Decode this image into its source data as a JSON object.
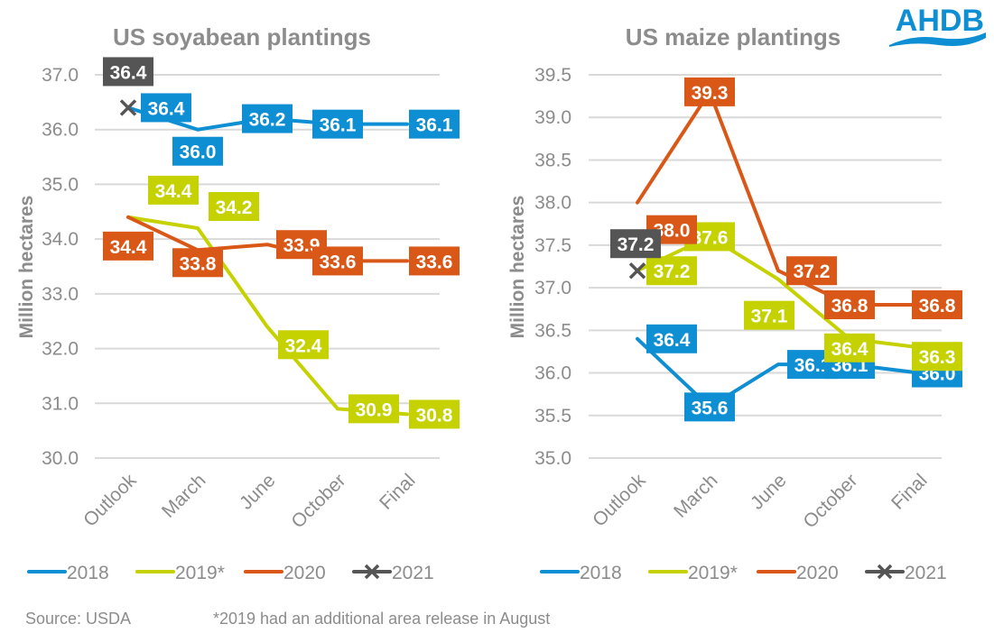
{
  "brand": {
    "name": "AHDB",
    "color": "#0f8fd3"
  },
  "footer": {
    "source": "Source: USDA",
    "note": "*2019 had an additional area release in August"
  },
  "series_styles": {
    "2018": {
      "color": "#0f8fd3",
      "marker": "line"
    },
    "2019*": {
      "color": "#c5d200",
      "marker": "line"
    },
    "2020": {
      "color": "#d95818",
      "marker": "line"
    },
    "2021": {
      "color": "#555555",
      "marker": "x"
    }
  },
  "chart_data": [
    {
      "type": "line",
      "title": "US soyabean plantings",
      "xlabel": "",
      "ylabel": "Million hectares",
      "categories": [
        "Outlook",
        "March",
        "June",
        "October",
        "Final"
      ],
      "ylim": [
        30.0,
        37.0
      ],
      "yticks": [
        "30.0",
        "31.0",
        "32.0",
        "33.0",
        "34.0",
        "35.0",
        "36.0",
        "37.0"
      ],
      "grid": true,
      "legend": "bottom",
      "series": [
        {
          "name": "2018",
          "values": [
            36.4,
            36.0,
            36.2,
            36.1,
            36.1
          ],
          "labels": [
            "36.4",
            "36.0",
            "36.2",
            "36.1",
            "36.1"
          ]
        },
        {
          "name": "2019*",
          "values": [
            34.4,
            34.2,
            32.4,
            30.9,
            30.8
          ],
          "labels": [
            "34.4",
            "34.2",
            "32.4",
            "30.9",
            "30.8"
          ]
        },
        {
          "name": "2020",
          "values": [
            34.4,
            33.8,
            33.9,
            33.6,
            33.6
          ],
          "labels": [
            "34.4",
            "33.8",
            "33.9",
            "33.6",
            "33.6"
          ]
        },
        {
          "name": "2021",
          "values": [
            36.4,
            null,
            null,
            null,
            null
          ],
          "labels": [
            "36.4",
            null,
            null,
            null,
            null
          ]
        }
      ]
    },
    {
      "type": "line",
      "title": "US maize plantings",
      "xlabel": "",
      "ylabel": "Million hectares",
      "categories": [
        "Outlook",
        "March",
        "June",
        "October",
        "Final"
      ],
      "ylim": [
        35.0,
        39.5
      ],
      "yticks": [
        "35.0",
        "35.5",
        "36.0",
        "36.5",
        "37.0",
        "37.5",
        "38.0",
        "38.5",
        "39.0",
        "39.5"
      ],
      "grid": true,
      "legend": "bottom",
      "series": [
        {
          "name": "2018",
          "values": [
            36.4,
            35.6,
            36.1,
            36.1,
            36.0
          ],
          "labels": [
            "36.4",
            "35.6",
            "36.1",
            "36.1",
            "36.0"
          ]
        },
        {
          "name": "2019*",
          "values": [
            37.2,
            37.6,
            37.1,
            36.4,
            36.3
          ],
          "labels": [
            "37.2",
            "37.6",
            "37.1",
            "36.4",
            "36.3"
          ]
        },
        {
          "name": "2020",
          "values": [
            38.0,
            39.3,
            37.2,
            36.8,
            36.8
          ],
          "labels": [
            "38.0",
            "39.3",
            "37.2",
            "36.8",
            "36.8"
          ]
        },
        {
          "name": "2021",
          "values": [
            37.2,
            null,
            null,
            null,
            null
          ],
          "labels": [
            "37.2",
            null,
            null,
            null,
            null
          ]
        }
      ]
    }
  ]
}
